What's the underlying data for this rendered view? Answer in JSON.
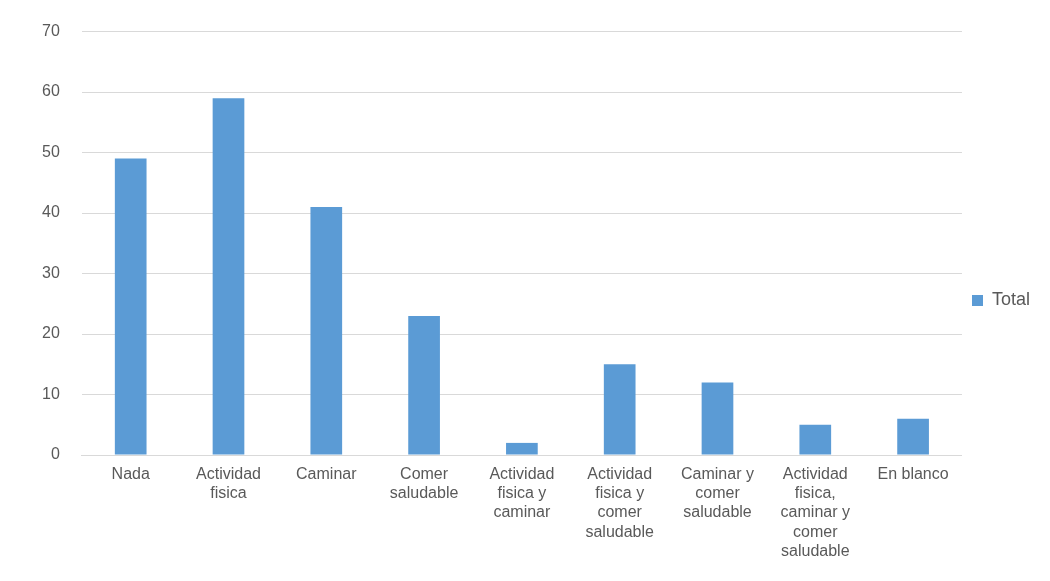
{
  "chart_data": {
    "type": "bar",
    "categories": [
      "Nada",
      "Actividad fisica",
      "Caminar",
      "Comer saludable",
      "Actividad fisica y caminar",
      "Actividad fisica y comer saludable",
      "Caminar y comer saludable",
      "Actividad fisica, caminar y comer saludable",
      "En blanco"
    ],
    "series": [
      {
        "name": "Total",
        "color": "#5b9bd5",
        "values": [
          49,
          59,
          41,
          23,
          2,
          15,
          12,
          5,
          6
        ]
      }
    ],
    "ylim": [
      0,
      70
    ],
    "yticks": [
      0,
      10,
      20,
      30,
      40,
      50,
      60,
      70
    ],
    "grid": "y",
    "legend": "right"
  }
}
